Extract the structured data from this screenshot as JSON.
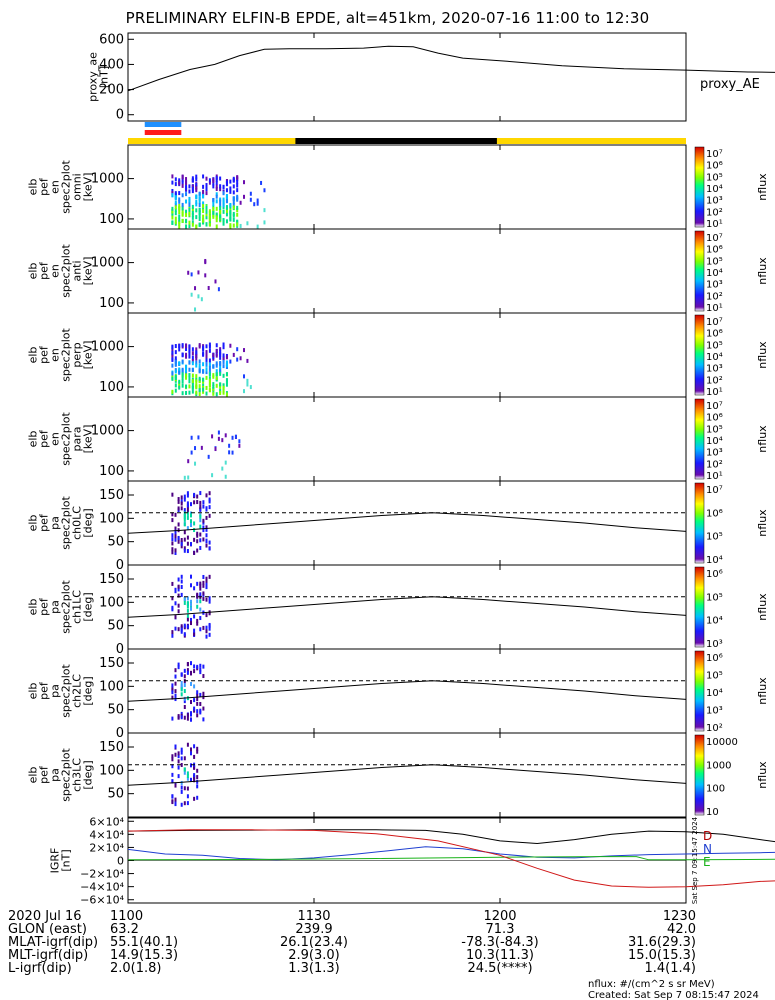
{
  "title": "PRELIMINARY ELFIN-B EPDE, alt=451km, 2020-07-16 11:00 to 12:30",
  "chart_data": [
    {
      "type": "line",
      "ylabel": [
        "proxy_ae",
        "[nT]"
      ],
      "legend": "proxy_AE",
      "ylim": [
        -50,
        650
      ],
      "yticks": [
        "600",
        "400",
        "200",
        "0"
      ],
      "series": [
        {
          "name": "proxy_AE",
          "x": [
            0,
            5,
            10,
            14,
            18,
            22,
            26,
            32,
            38,
            42,
            46,
            50,
            54,
            60,
            70,
            80,
            90,
            100,
            108,
            114,
            120,
            126,
            130
          ],
          "values": [
            190,
            280,
            360,
            400,
            470,
            520,
            525,
            525,
            530,
            545,
            540,
            490,
            450,
            430,
            390,
            365,
            355,
            340,
            335,
            330,
            300,
            300,
            230
          ]
        }
      ]
    },
    {
      "type": "heatmap",
      "ylabel": [
        "elb",
        "pef",
        "en",
        "spec2plot",
        "omni",
        "[keV]"
      ],
      "yticks": [
        "1000",
        "100"
      ],
      "colorbar_ticks": [
        "10⁷",
        "10⁶",
        "10⁵",
        "10⁴",
        "10³",
        "10²",
        "10¹"
      ],
      "colorbar_label": "nflux",
      "dense": true,
      "activity_min": [
        7,
        22
      ]
    },
    {
      "type": "heatmap",
      "ylabel": [
        "elb",
        "pef",
        "en",
        "spec2plot",
        "anti",
        "[keV]"
      ],
      "yticks": [
        "1000",
        "100"
      ],
      "colorbar_ticks": [
        "10⁷",
        "10⁶",
        "10⁵",
        "10⁴",
        "10³",
        "10²",
        "10¹"
      ],
      "colorbar_label": "nflux",
      "dense": false,
      "activity_min": [
        9,
        15
      ]
    },
    {
      "type": "heatmap",
      "ylabel": [
        "elb",
        "pef",
        "en",
        "spec2plot",
        "perp",
        "[keV]"
      ],
      "yticks": [
        "1000",
        "100"
      ],
      "colorbar_ticks": [
        "10⁷",
        "10⁶",
        "10⁵",
        "10⁴",
        "10³",
        "10²",
        "10¹"
      ],
      "colorbar_label": "nflux",
      "dense": true,
      "activity_min": [
        7,
        20
      ]
    },
    {
      "type": "heatmap",
      "ylabel": [
        "elb",
        "pef",
        "en",
        "spec2plot",
        "para",
        "[keV]"
      ],
      "yticks": [
        "1000",
        "100"
      ],
      "colorbar_ticks": [
        "10⁷",
        "10⁶",
        "10⁵",
        "10⁴",
        "10³",
        "10²",
        "10¹"
      ],
      "colorbar_label": "nflux",
      "dense": false,
      "activity_min": [
        9,
        18
      ]
    },
    {
      "type": "heatmap",
      "ylabel": [
        "elb",
        "pef",
        "pa",
        "spec2plot",
        "ch0LC",
        "[deg]"
      ],
      "yticks": [
        "150",
        "100",
        "50",
        "0"
      ],
      "ylim": [
        0,
        180
      ],
      "colorbar_ticks": [
        "10⁷",
        "10⁶",
        "10⁵",
        "10⁴"
      ],
      "colorbar_label": "nflux",
      "activity_min": [
        7,
        13
      ],
      "lc_solid": [
        68,
        74,
        82,
        90,
        98,
        106,
        112,
        106,
        98,
        90,
        80,
        72
      ],
      "lc_dashed": [
        112,
        112,
        112,
        112,
        112,
        112,
        112,
        112,
        112,
        112,
        112,
        112
      ]
    },
    {
      "type": "heatmap",
      "ylabel": [
        "elb",
        "pef",
        "pa",
        "spec2plot",
        "ch1LC",
        "[deg]"
      ],
      "yticks": [
        "150",
        "100",
        "50",
        "0"
      ],
      "ylim": [
        0,
        180
      ],
      "colorbar_ticks": [
        "10⁶",
        "10⁵",
        "10⁴",
        "10³"
      ],
      "colorbar_label": "nflux",
      "activity_min": [
        7,
        13
      ],
      "lc_solid": [
        68,
        74,
        82,
        90,
        98,
        106,
        112,
        106,
        98,
        90,
        80,
        72
      ],
      "lc_dashed": [
        112,
        112,
        112,
        112,
        112,
        112,
        112,
        112,
        112,
        112,
        112,
        112
      ]
    },
    {
      "type": "heatmap",
      "ylabel": [
        "elb",
        "pef",
        "pa",
        "spec2plot",
        "ch2LC",
        "[deg]"
      ],
      "yticks": [
        "150",
        "100",
        "50",
        "0"
      ],
      "ylim": [
        0,
        180
      ],
      "colorbar_ticks": [
        "10⁶",
        "10⁵",
        "10⁴",
        "10³",
        "10²"
      ],
      "colorbar_label": "nflux",
      "activity_min": [
        7,
        12
      ],
      "lc_solid": [
        68,
        74,
        82,
        90,
        98,
        106,
        112,
        106,
        98,
        90,
        80,
        72
      ],
      "lc_dashed": [
        112,
        112,
        112,
        112,
        112,
        112,
        112,
        112,
        112,
        112,
        112,
        112
      ]
    },
    {
      "type": "heatmap",
      "ylabel": [
        "elb",
        "pef",
        "pa",
        "spec2plot",
        "ch3LC",
        "[deg]"
      ],
      "yticks": [
        "150",
        "100",
        "50"
      ],
      "ylim": [
        0,
        180
      ],
      "colorbar_ticks": [
        "10000",
        "1000",
        "100",
        "10"
      ],
      "colorbar_label": "nflux",
      "activity_min": [
        7,
        11
      ],
      "lc_solid": [
        68,
        74,
        82,
        90,
        98,
        106,
        112,
        106,
        98,
        90,
        80,
        72
      ],
      "lc_dashed": [
        112,
        112,
        112,
        112,
        112,
        112,
        112,
        112,
        112,
        112,
        112,
        112
      ]
    },
    {
      "type": "line",
      "ylabel": [
        "IGRF",
        "[nT]"
      ],
      "ylim": [
        -65000,
        65000
      ],
      "yticks": [
        "6×10⁴",
        "4×10⁴",
        "2×10⁴",
        "0",
        "−2×10⁴",
        "−4×10⁴",
        "−6×10⁴"
      ],
      "side_note": "Sat Sep  7 09:15:47 2024",
      "series": [
        {
          "name": "D",
          "color": "#000000",
          "x": [
            0,
            10,
            20,
            30,
            40,
            48,
            54,
            60,
            66,
            72,
            78,
            84,
            90,
            96,
            102,
            108,
            114,
            120,
            126,
            130
          ],
          "values": [
            45000,
            46000,
            46500,
            47000,
            47000,
            46000,
            40000,
            30000,
            26000,
            32000,
            40000,
            45000,
            44000,
            40000,
            32000,
            24000,
            20000,
            25000,
            32000,
            40000
          ]
        },
        {
          "name": "N",
          "color": "#1f3fd0",
          "x": [
            0,
            6,
            12,
            18,
            24,
            30,
            36,
            42,
            48,
            54,
            60,
            66,
            72,
            78,
            84,
            90,
            96,
            102,
            108,
            114,
            120,
            126,
            130
          ],
          "values": [
            17000,
            10000,
            8000,
            3000,
            1000,
            4000,
            9000,
            15000,
            21000,
            18000,
            10000,
            5000,
            4000,
            7000,
            9000,
            10000,
            11000,
            12000,
            13000,
            15000,
            20000,
            24000,
            30000
          ]
        },
        {
          "name": "E",
          "color": "#19b219",
          "x": [
            0,
            20,
            40,
            60,
            76,
            82,
            84,
            90,
            100,
            110,
            120,
            130
          ],
          "values": [
            1000,
            1500,
            3000,
            5000,
            6000,
            6000,
            1000,
            1000,
            1500,
            2500,
            5000,
            8000
          ]
        },
        {
          "name": "",
          "color": "#d01717",
          "x": [
            0,
            10,
            20,
            30,
            40,
            50,
            60,
            66,
            72,
            78,
            84,
            90,
            96,
            102,
            108,
            114,
            120,
            126,
            130
          ],
          "values": [
            45000,
            47000,
            47000,
            46000,
            41000,
            30000,
            8000,
            -12000,
            -30000,
            -39000,
            -41000,
            -40000,
            -37000,
            -32000,
            -30000,
            -22000,
            -8000,
            10000,
            22000
          ]
        }
      ],
      "legend_letters": [
        "D",
        "N",
        "E"
      ]
    }
  ],
  "xaxis": {
    "ticks": [
      "1100",
      "1130",
      "1200",
      "1230"
    ],
    "tick_minutes": [
      0,
      30,
      60,
      90
    ]
  },
  "footer_rows": [
    {
      "label": "2020 Jul 16",
      "values": [
        "1100",
        "1130",
        "1200",
        "1230"
      ]
    },
    {
      "label": "GLON (east)",
      "values": [
        "63.2",
        "239.9",
        "71.3",
        "42.0"
      ]
    },
    {
      "label": "MLAT-igrf(dip)",
      "values": [
        "55.1(40.1)",
        "26.1(23.4)",
        "-78.3(-84.3)",
        "31.6(29.3)"
      ]
    },
    {
      "label": "MLT-igrf(dip)",
      "values": [
        "14.9(15.3)",
        "2.9(3.0)",
        "10.3(11.3)",
        "15.0(15.3)"
      ]
    },
    {
      "label": "L-igrf(dip)",
      "values": [
        "2.0(1.8)",
        "1.3(1.3)",
        "24.5(****)",
        "1.4(1.4)"
      ]
    }
  ],
  "footnote_units": "nflux: #/(cm^2 s sr MeV)",
  "footnote_created": "Created: Sat Sep  7 08:15:47 2024",
  "colors": {
    "axis": "#000000",
    "sun_yellow": "#ffd700",
    "eclipse_black": "#000000",
    "mode_blue": "#1e90ff",
    "mode_red": "#ff1a1a"
  }
}
